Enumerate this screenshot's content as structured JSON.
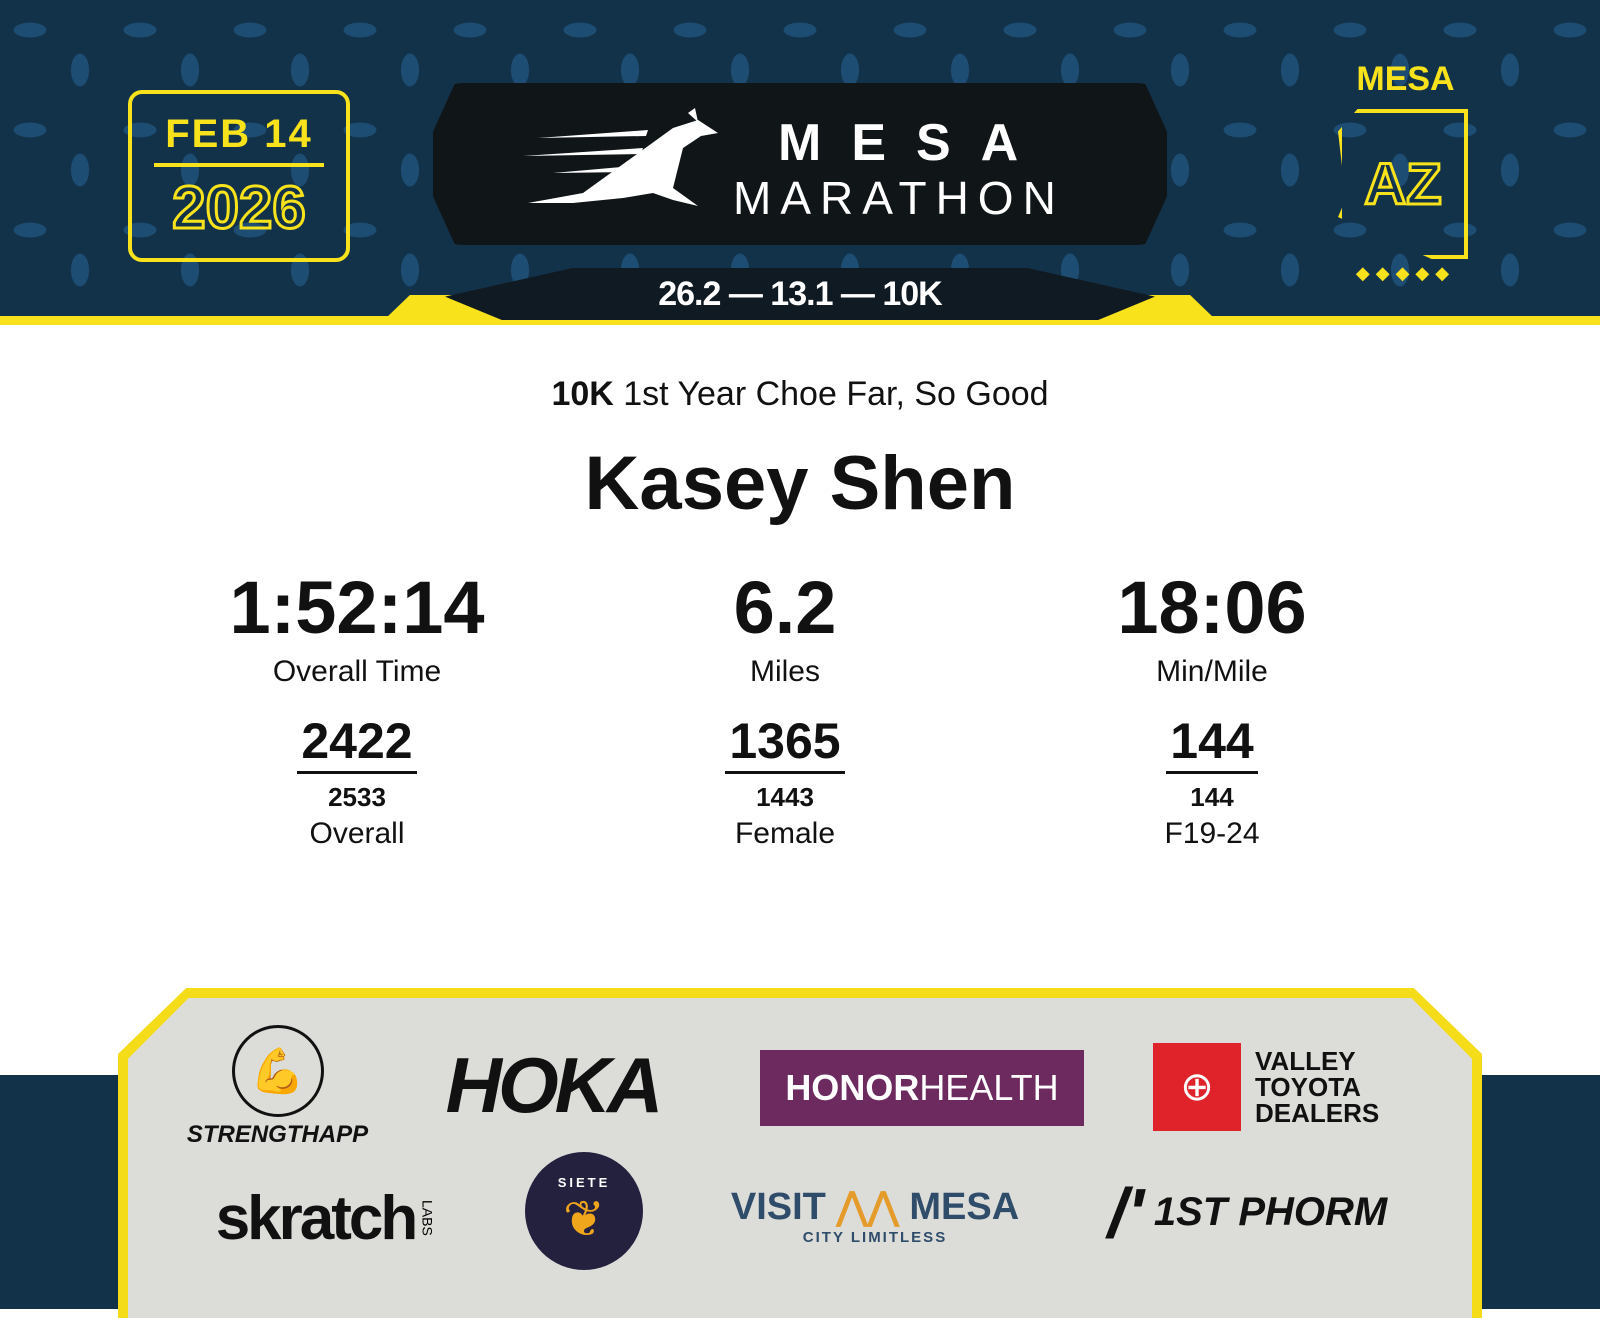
{
  "header": {
    "date": "FEB 14",
    "year": "2026",
    "title_top": "MESA",
    "title_bottom": "MARATHON",
    "distances": "26.2 — 13.1 — 10K",
    "state_city": "MESA",
    "state": "AZ",
    "dots": "◆◆◆◆◆"
  },
  "result": {
    "race": "10K",
    "division": "1st Year Choe Far, So Good",
    "runner": "Kasey Shen",
    "stats": [
      {
        "value": "1:52:14",
        "label": "Overall Time"
      },
      {
        "value": "6.2",
        "label": "Miles"
      },
      {
        "value": "18:06",
        "label": "Min/Mile"
      }
    ],
    "ranks": [
      {
        "place": "2422",
        "total": "2533",
        "label": "Overall"
      },
      {
        "place": "1365",
        "total": "1443",
        "label": "Female"
      },
      {
        "place": "144",
        "total": "144",
        "label": "F19-24"
      }
    ]
  },
  "sponsors": [
    "STRENGTHAPP",
    "HOKA",
    "HONOR",
    "HEALTH",
    "VALLEY",
    "TOYOTA",
    "DEALERS",
    "skratch",
    "LABS",
    "SIETE",
    "VISIT",
    "MESA",
    "CITY LIMITLESS",
    "1ST PHORM"
  ],
  "colors": {
    "yellow": "#f7e21c",
    "navy": "#12324a",
    "honor": "#6d2a5f",
    "toyota": "#e0232b"
  }
}
